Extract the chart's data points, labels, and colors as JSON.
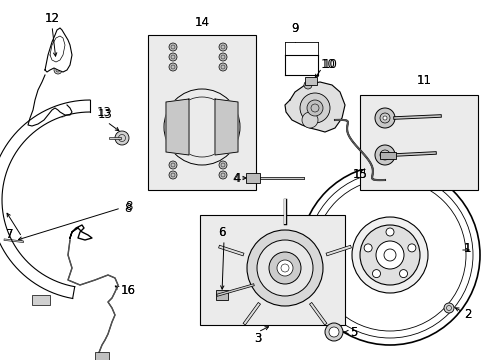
{
  "background_color": "#ffffff",
  "line_color": "#000000",
  "box_fill": "#ebebeb",
  "font_size": 8.5,
  "fig_width": 4.89,
  "fig_height": 3.6,
  "dpi": 100
}
